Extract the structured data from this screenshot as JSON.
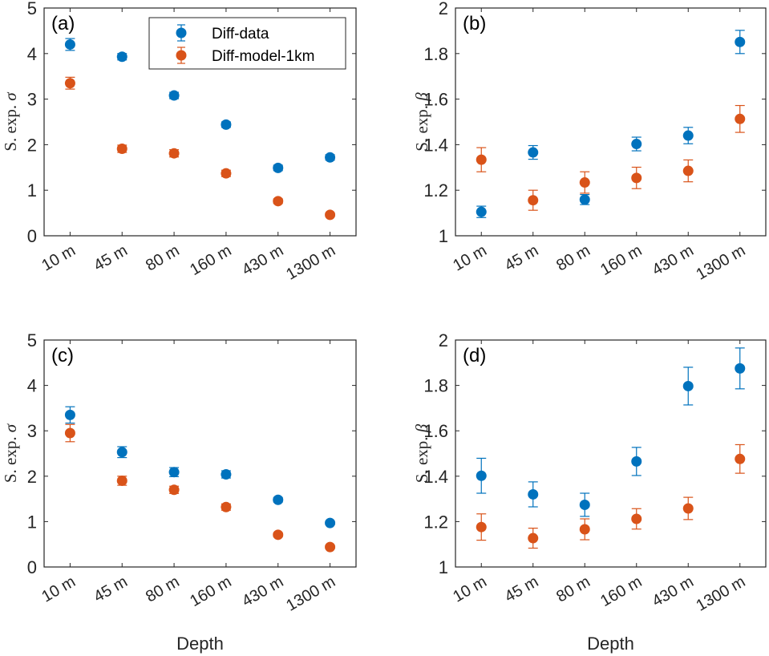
{
  "chart_data": [
    {
      "type": "scatter",
      "panel": "(a)",
      "ylabel_text": "S. exp. ",
      "ylabel_symbol": "σ",
      "xlabel": "",
      "categories": [
        "10 m",
        "45 m",
        "80 m",
        "160 m",
        "430 m",
        "1300 m"
      ],
      "ylim": [
        0,
        5
      ],
      "yticks": [
        "0",
        "1",
        "2",
        "3",
        "4",
        "5"
      ],
      "ytick_values": [
        0,
        1,
        2,
        3,
        4,
        5
      ],
      "legend": "top-right",
      "series": [
        {
          "name": "Diff-data",
          "color": "#0072BD",
          "values": [
            4.2,
            3.93,
            3.08,
            2.44,
            1.49,
            1.72
          ],
          "errors": [
            0.13,
            0.07,
            0.07,
            0.06,
            0.06,
            0.06
          ]
        },
        {
          "name": "Diff-model-1km",
          "color": "#D95319",
          "values": [
            3.35,
            1.91,
            1.81,
            1.37,
            0.76,
            0.46
          ],
          "errors": [
            0.13,
            0.08,
            0.08,
            0.07,
            0.05,
            0.04
          ]
        }
      ]
    },
    {
      "type": "scatter",
      "panel": "(b)",
      "ylabel_text": "S. exp. ",
      "ylabel_symbol": "β",
      "xlabel": "",
      "categories": [
        "10 m",
        "45 m",
        "80 m",
        "160 m",
        "430 m",
        "1300 m"
      ],
      "ylim": [
        1,
        2
      ],
      "yticks": [
        "1",
        "1.2",
        "1.4",
        "1.6",
        "1.8",
        "2"
      ],
      "ytick_values": [
        1,
        1.2,
        1.4,
        1.6,
        1.8,
        2
      ],
      "series": [
        {
          "name": "Diff-data",
          "color": "#0072BD",
          "values": [
            1.105,
            1.366,
            1.159,
            1.403,
            1.44,
            1.851
          ],
          "errors": [
            0.025,
            0.03,
            0.022,
            0.03,
            0.036,
            0.051
          ]
        },
        {
          "name": "Diff-model-1km",
          "color": "#D95319",
          "values": [
            1.334,
            1.156,
            1.234,
            1.254,
            1.285,
            1.513
          ],
          "errors": [
            0.053,
            0.044,
            0.047,
            0.047,
            0.048,
            0.059
          ]
        }
      ]
    },
    {
      "type": "scatter",
      "panel": "(c)",
      "ylabel_text": "S. exp. ",
      "ylabel_symbol": "σ",
      "xlabel": "Depth",
      "categories": [
        "10 m",
        "45 m",
        "80 m",
        "160 m",
        "430 m",
        "1300 m"
      ],
      "ylim": [
        0,
        5
      ],
      "yticks": [
        "0",
        "1",
        "2",
        "3",
        "4",
        "5"
      ],
      "ytick_values": [
        0,
        1,
        2,
        3,
        4,
        5
      ],
      "series": [
        {
          "name": "Diff-data",
          "color": "#0072BD",
          "values": [
            3.35,
            2.53,
            2.09,
            2.04,
            1.48,
            0.97
          ],
          "errors": [
            0.18,
            0.12,
            0.1,
            0.08,
            0.05,
            0.04
          ]
        },
        {
          "name": "Diff-model-1km",
          "color": "#D95319",
          "values": [
            2.95,
            1.9,
            1.7,
            1.32,
            0.71,
            0.44
          ],
          "errors": [
            0.19,
            0.1,
            0.08,
            0.07,
            0.04,
            0.04
          ]
        }
      ]
    },
    {
      "type": "scatter",
      "panel": "(d)",
      "ylabel_text": "S. exp. ",
      "ylabel_symbol": "β",
      "xlabel": "Depth",
      "categories": [
        "10 m",
        "45 m",
        "80 m",
        "160 m",
        "430 m",
        "1300 m"
      ],
      "ylim": [
        1,
        2
      ],
      "yticks": [
        "1",
        "1.2",
        "1.4",
        "1.6",
        "1.8",
        "2"
      ],
      "ytick_values": [
        1,
        1.2,
        1.4,
        1.6,
        1.8,
        2
      ],
      "series": [
        {
          "name": "Diff-data",
          "color": "#0072BD",
          "values": [
            1.402,
            1.32,
            1.274,
            1.465,
            1.797,
            1.875
          ],
          "errors": [
            0.077,
            0.055,
            0.051,
            0.062,
            0.083,
            0.09
          ]
        },
        {
          "name": "Diff-model-1km",
          "color": "#D95319",
          "values": [
            1.176,
            1.127,
            1.166,
            1.212,
            1.258,
            1.476
          ],
          "errors": [
            0.058,
            0.044,
            0.046,
            0.045,
            0.049,
            0.063
          ]
        }
      ]
    }
  ],
  "legend": {
    "entries": [
      {
        "label": "Diff-data",
        "color": "#0072BD"
      },
      {
        "label": "Diff-model-1km",
        "color": "#D95319"
      }
    ]
  }
}
